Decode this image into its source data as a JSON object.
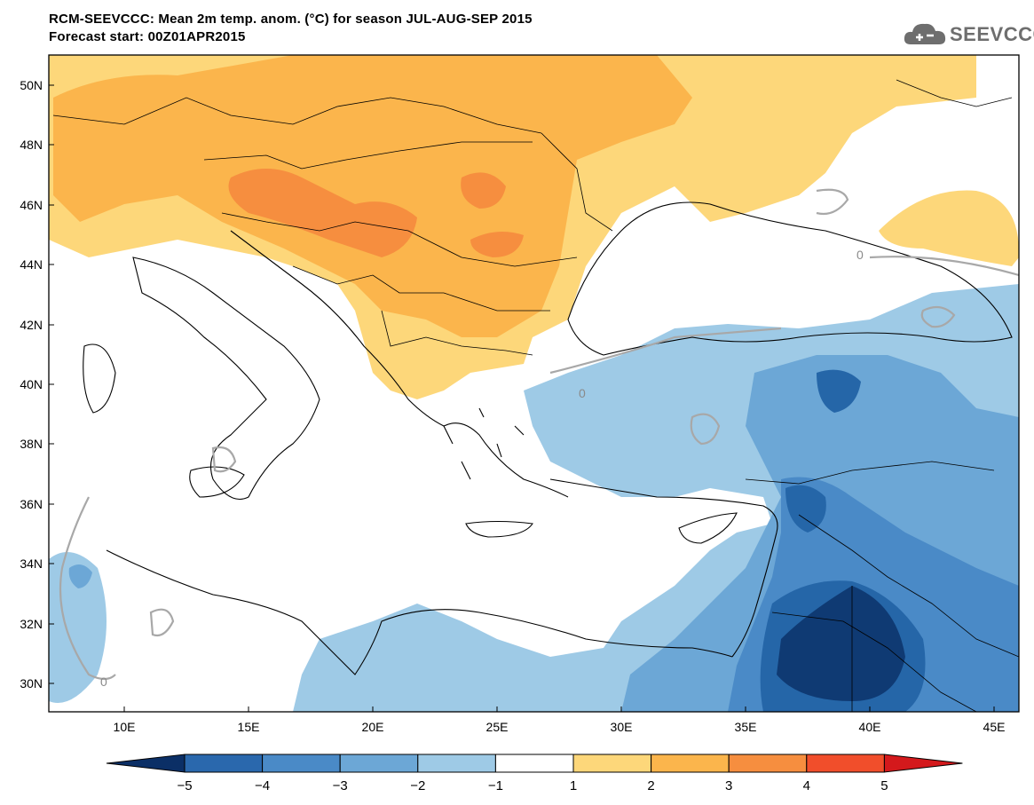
{
  "header": {
    "title_line1": "RCM-SEEVCCC: Mean 2m temp. anom. (°C) for season JUL-AUG-SEP 2015",
    "title_line2": "Forecast start: 00Z01APR2015"
  },
  "logo": {
    "text": "SEEVCCC",
    "icon": "cloud-icon"
  },
  "map": {
    "lon_ticks": [
      "10E",
      "15E",
      "20E",
      "25E",
      "30E",
      "35E",
      "40E",
      "45E"
    ],
    "lat_ticks": [
      "50N",
      "48N",
      "46N",
      "44N",
      "42N",
      "40N",
      "38N",
      "36N",
      "34N",
      "32N",
      "30N"
    ],
    "contour_label": "0",
    "colors": {
      "land_outline": "#000000",
      "zero_contour": "#a8a8a8",
      "anom_plus1": "#fdd77a",
      "anom_plus2": "#fbb54c",
      "anom_plus3": "#f68e3f",
      "anom_minus1": "#9ecae6",
      "anom_minus2": "#6ca7d6",
      "anom_minus3": "#4a8ac7",
      "anom_minus4": "#2566a8",
      "anom_minus5": "#0f3a73"
    }
  },
  "colorbar": {
    "labels": [
      "−5",
      "−4",
      "−3",
      "−2",
      "−1",
      "1",
      "2",
      "3",
      "4",
      "5"
    ],
    "colors": [
      "#0b2f66",
      "#2a68ad",
      "#4a8ac7",
      "#6ca7d6",
      "#9ecae6",
      "#ffffff",
      "#fdd77a",
      "#fbb54c",
      "#f68e3f",
      "#f14e2b",
      "#d4191c"
    ]
  }
}
